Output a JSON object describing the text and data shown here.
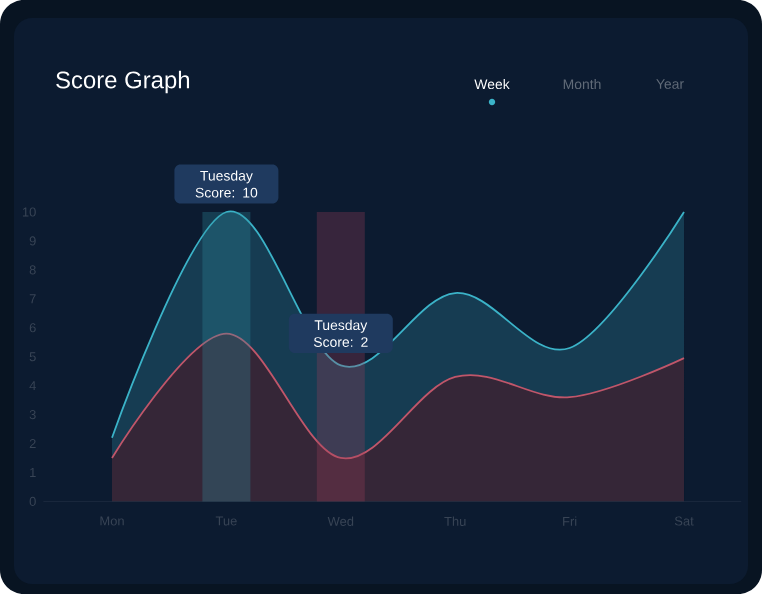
{
  "chart_data": {
    "type": "area",
    "title": "Score Graph",
    "ylim": [
      0,
      10
    ],
    "categories": [
      "Mon",
      "Tue",
      "Wed",
      "Thu",
      "Fri",
      "Sat"
    ],
    "yticks": [
      0,
      1,
      2,
      3,
      4,
      5,
      6,
      7,
      8,
      9,
      10
    ],
    "series": [
      {
        "color": "#3bb3c8",
        "values": [
          2.2,
          10.0,
          4.7,
          7.2,
          5.3,
          10.0
        ]
      },
      {
        "color": "#c0566a",
        "values": [
          1.5,
          5.8,
          1.5,
          4.3,
          3.6,
          4.95
        ]
      }
    ],
    "bands": [
      {
        "axis": "x",
        "from": "Tue",
        "to": "Tue",
        "color": "#2f8f9f"
      },
      {
        "axis": "x",
        "from": "Wed",
        "to": "Wed",
        "color": "#9a4058"
      }
    ],
    "annotations": [
      "Tuesday Score: 10",
      "Tuesday Score: 2",
      "Week",
      "Month",
      "Year"
    ]
  }
}
